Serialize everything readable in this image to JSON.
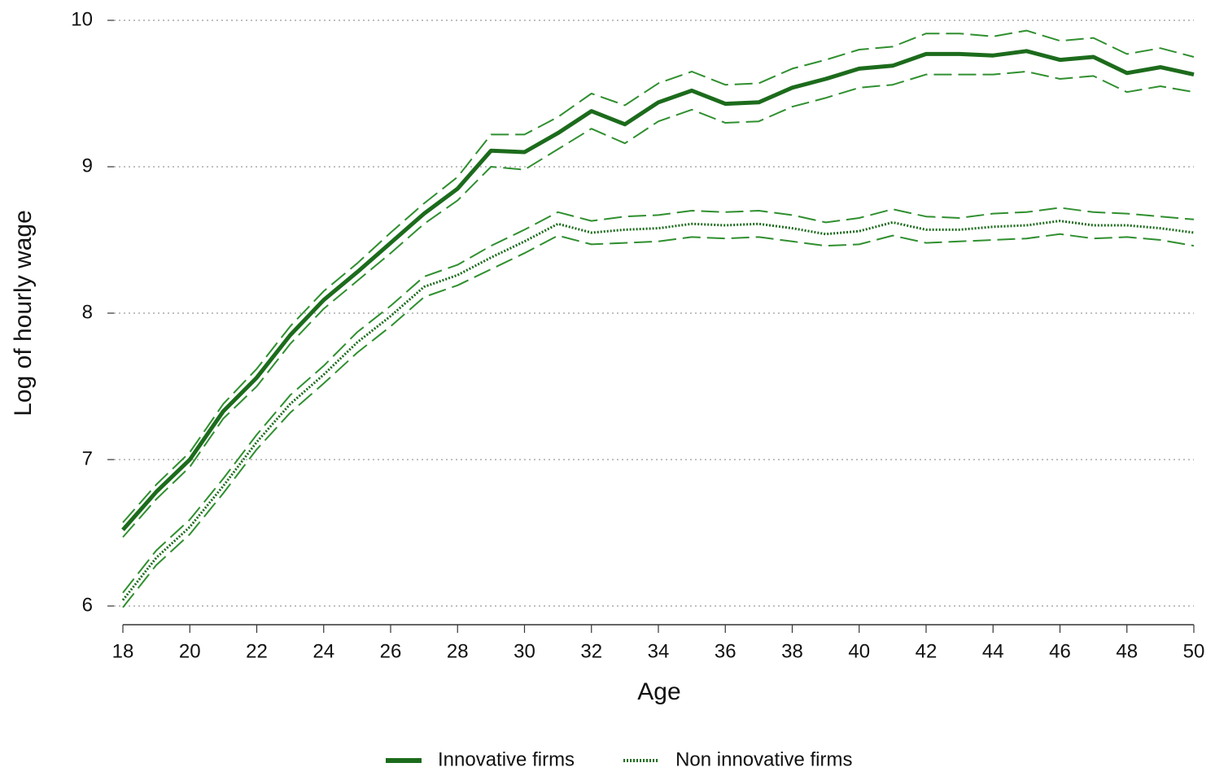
{
  "chart_data": {
    "type": "line",
    "x_label": "Age",
    "y_label": "Log of hourly wage",
    "x": [
      18,
      19,
      20,
      21,
      22,
      23,
      24,
      25,
      26,
      27,
      28,
      29,
      30,
      31,
      32,
      33,
      34,
      35,
      36,
      37,
      38,
      39,
      40,
      41,
      42,
      43,
      44,
      45,
      46,
      47,
      48,
      49,
      50
    ],
    "xlim": [
      18,
      50
    ],
    "xticks": [
      18,
      20,
      22,
      24,
      26,
      28,
      30,
      32,
      34,
      36,
      38,
      40,
      42,
      44,
      46,
      48,
      50
    ],
    "ylim": [
      6,
      10
    ],
    "yticks": [
      6,
      7,
      8,
      9,
      10
    ],
    "grid": true,
    "legend": "bottom",
    "series": [
      {
        "name": "Innovative firms",
        "color": "#1c6b1c",
        "ci_color": "#2f8f2f",
        "line_style": "solid",
        "values": [
          6.52,
          6.78,
          7.0,
          7.33,
          7.56,
          7.85,
          8.09,
          8.28,
          8.48,
          8.68,
          8.85,
          9.11,
          9.1,
          9.23,
          9.38,
          9.29,
          9.44,
          9.52,
          9.43,
          9.44,
          9.54,
          9.6,
          9.67,
          9.69,
          9.77,
          9.77,
          9.76,
          9.79,
          9.73,
          9.75,
          9.64,
          9.68,
          9.63
        ],
        "ci_upper": [
          6.57,
          6.83,
          7.05,
          7.38,
          7.62,
          7.91,
          8.15,
          8.34,
          8.55,
          8.75,
          8.93,
          9.22,
          9.22,
          9.34,
          9.5,
          9.42,
          9.57,
          9.65,
          9.56,
          9.57,
          9.67,
          9.73,
          9.8,
          9.82,
          9.91,
          9.91,
          9.89,
          9.93,
          9.86,
          9.88,
          9.77,
          9.81,
          9.75
        ],
        "ci_lower": [
          6.47,
          6.73,
          6.95,
          7.28,
          7.5,
          7.79,
          8.03,
          8.22,
          8.41,
          8.61,
          8.77,
          9.0,
          8.98,
          9.12,
          9.26,
          9.16,
          9.31,
          9.39,
          9.3,
          9.31,
          9.41,
          9.47,
          9.54,
          9.56,
          9.63,
          9.63,
          9.63,
          9.65,
          9.6,
          9.62,
          9.51,
          9.55,
          9.51
        ]
      },
      {
        "name": "Non innovative firms",
        "color": "#1c6b1c",
        "ci_color": "#2f8f2f",
        "line_style": "dotted",
        "values": [
          6.04,
          6.33,
          6.54,
          6.82,
          7.12,
          7.38,
          7.58,
          7.8,
          7.98,
          8.18,
          8.26,
          8.38,
          8.49,
          8.61,
          8.55,
          8.57,
          8.58,
          8.61,
          8.6,
          8.61,
          8.58,
          8.54,
          8.56,
          8.62,
          8.57,
          8.57,
          8.59,
          8.6,
          8.63,
          8.6,
          8.6,
          8.58,
          8.55
        ],
        "ci_upper": [
          6.09,
          6.38,
          6.59,
          6.87,
          7.17,
          7.44,
          7.64,
          7.87,
          8.05,
          8.25,
          8.33,
          8.46,
          8.57,
          8.69,
          8.63,
          8.66,
          8.67,
          8.7,
          8.69,
          8.7,
          8.67,
          8.62,
          8.65,
          8.71,
          8.66,
          8.65,
          8.68,
          8.69,
          8.72,
          8.69,
          8.68,
          8.66,
          8.64
        ],
        "ci_lower": [
          5.99,
          6.28,
          6.49,
          6.77,
          7.07,
          7.32,
          7.52,
          7.73,
          7.91,
          8.11,
          8.19,
          8.3,
          8.41,
          8.53,
          8.47,
          8.48,
          8.49,
          8.52,
          8.51,
          8.52,
          8.49,
          8.46,
          8.47,
          8.53,
          8.48,
          8.49,
          8.5,
          8.51,
          8.54,
          8.51,
          8.52,
          8.5,
          8.46
        ]
      }
    ]
  }
}
